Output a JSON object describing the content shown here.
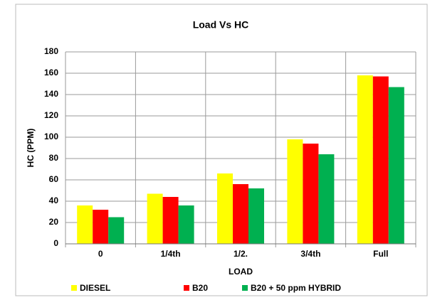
{
  "chart_data": {
    "type": "bar",
    "title": "Load Vs HC",
    "x_label": "LOAD",
    "y_label": "HC (PPM)",
    "categories": [
      "0",
      "1/4th",
      "1/2.",
      "3/4th",
      "Full"
    ],
    "series": [
      {
        "name": "DIESEL",
        "color": "#ffff00",
        "values": [
          36,
          47,
          66,
          98,
          158
        ]
      },
      {
        "name": "B20",
        "color": "#ff0000",
        "values": [
          32,
          44,
          56,
          94,
          157
        ]
      },
      {
        "name": "B20 + 50 ppm HYBRID",
        "color": "#00b050",
        "values": [
          25,
          36,
          52,
          84,
          147
        ]
      }
    ],
    "ylim": [
      0,
      180
    ],
    "yticks": [
      0,
      20,
      40,
      60,
      80,
      100,
      120,
      140,
      160,
      180
    ],
    "grid": true,
    "legend": "bottom"
  }
}
